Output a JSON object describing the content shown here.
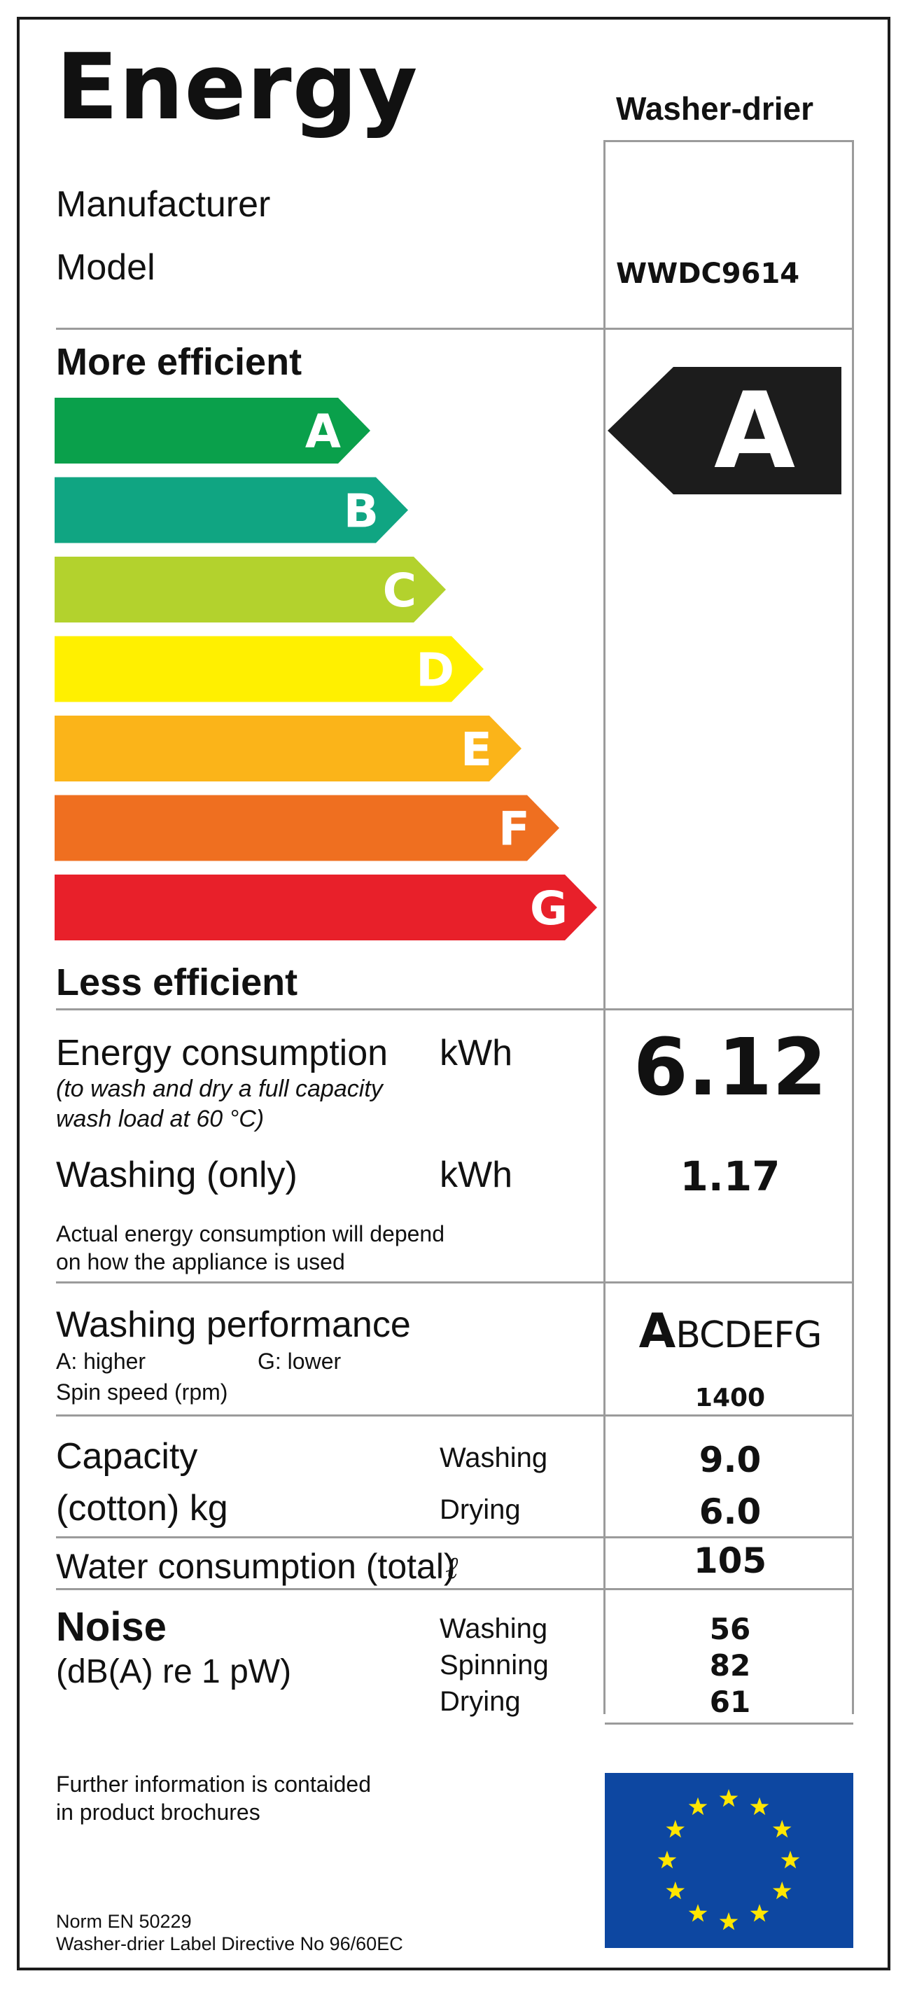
{
  "title": "Energy",
  "appliance_type": "Washer-drier",
  "manufacturer_label": "Manufacturer",
  "model_label": "Model",
  "model_value": "WWDC9614",
  "more_efficient": "More efficient",
  "less_efficient": "Less efficient",
  "scale": [
    {
      "letter": "A",
      "color": "#0aa04b"
    },
    {
      "letter": "B",
      "color": "#10a582"
    },
    {
      "letter": "C",
      "color": "#b3d22d"
    },
    {
      "letter": "D",
      "color": "#fff000"
    },
    {
      "letter": "E",
      "color": "#fbb419"
    },
    {
      "letter": "F",
      "color": "#ef6f20"
    },
    {
      "letter": "G",
      "color": "#e8202a"
    }
  ],
  "rating": {
    "letter": "A",
    "color": "#1c1c1c"
  },
  "energy_consumption": {
    "label": "Energy consumption",
    "note": "(to wash and dry a full capacity\nwash load at 60 °C)",
    "unit": "kWh",
    "value": "6.12"
  },
  "washing_only": {
    "label": "Washing (only)",
    "unit": "kWh",
    "value": "1.17"
  },
  "actual_note": "Actual energy consumption will depend\non how the appliance is used",
  "washing_performance": {
    "label": "Washing performance",
    "higher": "A: higher",
    "lower": "G: lower",
    "grade_first": "A",
    "grade_rest": "BCDEFG"
  },
  "spin_speed": {
    "label": "Spin speed (rpm)",
    "value": "1400"
  },
  "capacity": {
    "label1": "Capacity",
    "label2": "(cotton) kg",
    "washing_label": "Washing",
    "washing_value": "9.0",
    "drying_label": "Drying",
    "drying_value": "6.0"
  },
  "water": {
    "label": "Water consumption (total)",
    "unit": "ℓ",
    "value": "105"
  },
  "noise": {
    "label": "Noise",
    "unit": "(dB(A) re 1 pW)",
    "washing_label": "Washing",
    "washing_value": "56",
    "spinning_label": "Spinning",
    "spinning_value": "82",
    "drying_label": "Drying",
    "drying_value": "61"
  },
  "further_info": "Further information is contaided\nin product brochures",
  "norm": "Norm EN 50229",
  "directive": "Washer-drier Label Directive No 96/60EC",
  "eu_flag": {
    "background": "#0d47a1",
    "star_color": "#ffe600",
    "icon": "eu-flag-icon"
  }
}
